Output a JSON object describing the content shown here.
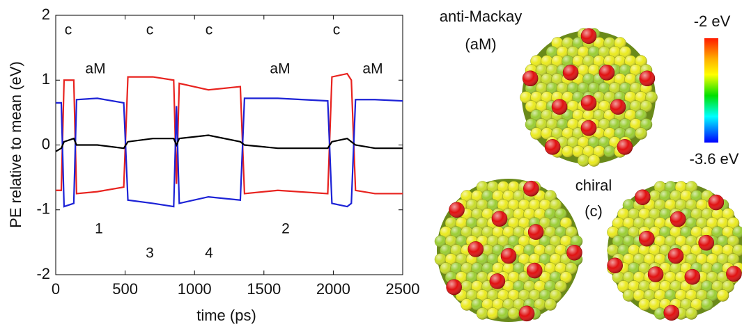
{
  "chart_data": {
    "type": "line",
    "xlabel": "time (ps)",
    "ylabel": "PE relative to mean (eV)",
    "x": [
      0,
      40,
      60,
      130,
      150,
      300,
      490,
      520,
      700,
      850,
      870,
      890,
      1100,
      1330,
      1360,
      1600,
      1960,
      1990,
      2100,
      2130,
      2160,
      2300,
      2500
    ],
    "series": [
      {
        "color": "#e8231f",
        "values": [
          -0.7,
          -0.7,
          1.0,
          1.0,
          -0.75,
          -0.72,
          -0.65,
          1.05,
          1.05,
          1.0,
          -0.6,
          0.95,
          0.85,
          0.9,
          -0.75,
          -0.7,
          -0.75,
          1.05,
          1.1,
          1.0,
          -0.7,
          -0.75,
          -0.75
        ]
      },
      {
        "color": "#1c22d6",
        "values": [
          0.65,
          0.65,
          -0.95,
          -0.9,
          0.7,
          0.72,
          0.65,
          -0.85,
          -0.9,
          -0.95,
          0.6,
          -0.9,
          -0.8,
          -0.85,
          0.72,
          0.72,
          0.68,
          -0.9,
          -0.95,
          -0.9,
          0.7,
          0.7,
          0.68
        ]
      },
      {
        "color": "#000000",
        "values": [
          -0.1,
          -0.05,
          0.05,
          0.1,
          0,
          0,
          -0.05,
          0.05,
          0.1,
          0.1,
          0,
          0.1,
          0.15,
          0.05,
          0,
          -0.05,
          -0.05,
          0.05,
          0.1,
          0.05,
          0,
          -0.05,
          -0.05
        ]
      }
    ],
    "xlim": [
      0,
      2500
    ],
    "xticks": [
      0,
      500,
      1000,
      1500,
      2000,
      2500
    ],
    "ylim": [
      -2,
      2
    ],
    "yticks": [
      -2,
      -1,
      0,
      1,
      2
    ],
    "annotations": [
      "c",
      "aM",
      "c",
      "c",
      "aM",
      "c",
      "aM",
      "1",
      "3",
      "4",
      "2"
    ]
  },
  "structures": {
    "anti_mackay": [
      "anti-Mackay",
      "(aM)"
    ],
    "chiral": [
      "chiral",
      "(c)"
    ]
  },
  "colorbar": {
    "top_label": "-2 eV",
    "bottom_label": "-3.6 eV"
  }
}
